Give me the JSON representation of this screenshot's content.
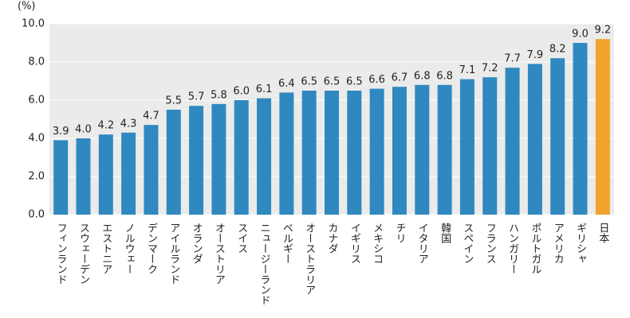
{
  "chart_data": {
    "type": "bar",
    "y_label": "(%)",
    "categories": [
      "フィンランド",
      "スウェーデン",
      "エストニア",
      "ノルウェー",
      "デンマーク",
      "アイルランド",
      "オランダ",
      "オーストリア",
      "スイス",
      "ニュージーランド",
      "ベルギー",
      "オーストラリア",
      "カナダ",
      "イギリス",
      "メキシコ",
      "チリ",
      "イタリア",
      "韓国",
      "スペイン",
      "フランス",
      "ハンガリー",
      "ポルトガル",
      "アメリカ",
      "ギリシャ",
      "日本"
    ],
    "values": [
      3.9,
      4.0,
      4.2,
      4.3,
      4.7,
      5.5,
      5.7,
      5.8,
      6.0,
      6.1,
      6.4,
      6.5,
      6.5,
      6.5,
      6.6,
      6.7,
      6.8,
      6.8,
      7.1,
      7.2,
      7.7,
      7.9,
      8.2,
      9.0,
      9.2
    ],
    "value_labels": [
      "3.9",
      "4.0",
      "4.2",
      "4.3",
      "4.7",
      "5.5",
      "5.7",
      "5.8",
      "6.0",
      "6.1",
      "6.4",
      "6.5",
      "6.5",
      "6.5",
      "6.6",
      "6.7",
      "6.8",
      "6.8",
      "7.1",
      "7.2",
      "7.7",
      "7.9",
      "8.2",
      "9.0",
      "9.2"
    ],
    "colors": [
      "#2f89c0",
      "#2f89c0",
      "#2f89c0",
      "#2f89c0",
      "#2f89c0",
      "#2f89c0",
      "#2f89c0",
      "#2f89c0",
      "#2f89c0",
      "#2f89c0",
      "#2f89c0",
      "#2f89c0",
      "#2f89c0",
      "#2f89c0",
      "#2f89c0",
      "#2f89c0",
      "#2f89c0",
      "#2f89c0",
      "#2f89c0",
      "#2f89c0",
      "#2f89c0",
      "#2f89c0",
      "#2f89c0",
      "#2f89c0",
      "#f2a22e"
    ],
    "ylim": [
      0,
      10
    ],
    "yticks": [
      {
        "value": 0,
        "label": "0.0"
      },
      {
        "value": 2,
        "label": "2.0"
      },
      {
        "value": 4,
        "label": "4.0"
      },
      {
        "value": 6,
        "label": "6.0"
      },
      {
        "value": 8,
        "label": "8.0"
      },
      {
        "value": 10,
        "label": "10.0"
      }
    ],
    "grid": true
  }
}
